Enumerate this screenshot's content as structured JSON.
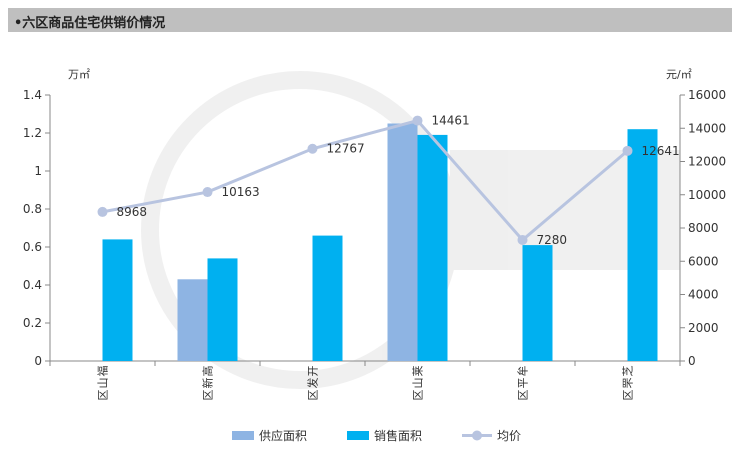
{
  "header": {
    "title": "•六区商品住宅供销价情况"
  },
  "chart_data": {
    "type": "bar",
    "categories": [
      "福山区",
      "高新区",
      "开发区",
      "莱山区",
      "牟平区",
      "芝罘区"
    ],
    "series": [
      {
        "name": "供应面积",
        "type": "bar",
        "axis": "left",
        "color": "#8eb4e3",
        "values": [
          null,
          0.43,
          null,
          1.25,
          null,
          null
        ]
      },
      {
        "name": "销售面积",
        "type": "bar",
        "axis": "left",
        "color": "#00b0f0",
        "values": [
          0.64,
          0.54,
          0.66,
          1.19,
          0.61,
          1.22
        ]
      },
      {
        "name": "均价",
        "type": "line",
        "axis": "right",
        "color": "#b8c4e0",
        "values": [
          8968,
          10163,
          12767,
          14461,
          7280,
          12641
        ]
      }
    ],
    "y_left": {
      "unit": "万㎡",
      "min": 0,
      "max": 1.4,
      "ticks": [
        "0",
        "0.2",
        "0.4",
        "0.6",
        "0.8",
        "1",
        "1.2",
        "1.4"
      ]
    },
    "y_right": {
      "unit": "元/㎡",
      "min": 0,
      "max": 16000,
      "ticks": [
        "0",
        "2000",
        "4000",
        "6000",
        "8000",
        "10000",
        "12000",
        "14000",
        "16000"
      ]
    },
    "line_labels": [
      "8968",
      "10163",
      "12767",
      "14461",
      "7280",
      "12641"
    ],
    "legend_position": "bottom",
    "grid": false
  }
}
